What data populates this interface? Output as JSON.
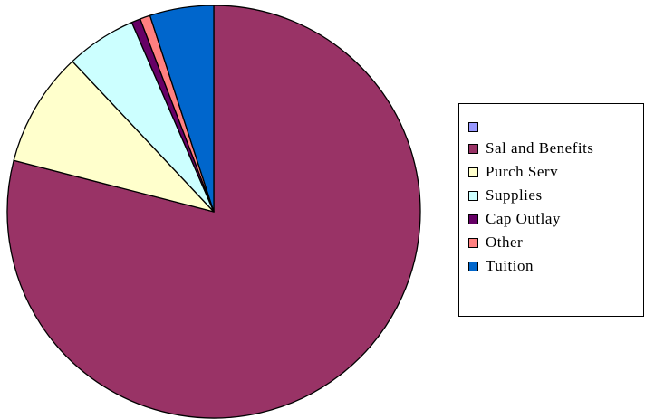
{
  "chart_data": {
    "type": "pie",
    "start": "12 o'clock, clockwise",
    "slices": [
      {
        "label": "Sal and Benefits",
        "value": 79.0,
        "color": "#993366"
      },
      {
        "label": "Purch Serv",
        "value": 9.0,
        "color": "#FFFFCC"
      },
      {
        "label": "Supplies",
        "value": 5.5,
        "color": "#CCFFFF"
      },
      {
        "label": "Cap Outlay",
        "value": 0.7,
        "color": "#660066"
      },
      {
        "label": "Other",
        "value": 0.8,
        "color": "#FF8080"
      },
      {
        "label": "Tuition",
        "value": 5.0,
        "color": "#0066CC"
      }
    ],
    "legend": {
      "position": "right",
      "entries": [
        {
          "label": "",
          "color": "#9999FF"
        },
        {
          "label": "Sal and Benefits",
          "color": "#993366"
        },
        {
          "label": "Purch Serv",
          "color": "#FFFFCC"
        },
        {
          "label": "Supplies",
          "color": "#CCFFFF"
        },
        {
          "label": "Cap Outlay",
          "color": "#660066"
        },
        {
          "label": "Other",
          "color": "#FF8080"
        },
        {
          "label": "Tuition",
          "color": "#0066CC"
        }
      ]
    }
  }
}
